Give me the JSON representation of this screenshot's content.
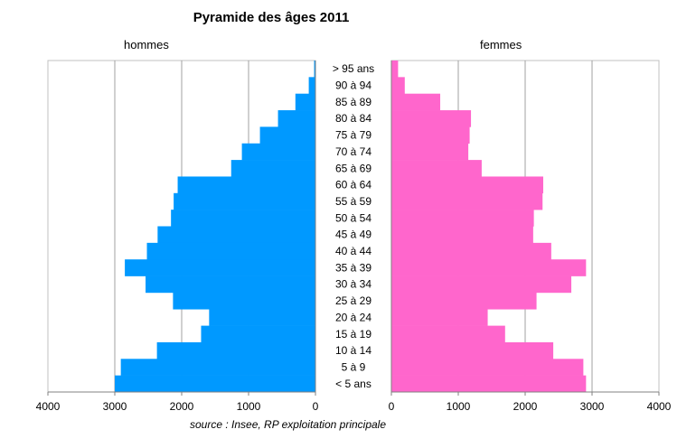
{
  "chart_data": {
    "type": "bar",
    "title": "Pyramide des âges 2011",
    "source": "source : Insee, RP exploitation principale",
    "categories": [
      "> 95 ans",
      "90 à 94",
      "85 à 89",
      "80 à 84",
      "75 à 79",
      "70 à 74",
      "65 à 69",
      "60 à 64",
      "55 à 59",
      "50 à 54",
      "45 à 49",
      "40 à 44",
      "35 à 39",
      "30 à 34",
      "25 à 29",
      "20 à 24",
      "15 à 19",
      "10 à 14",
      "5 à 9",
      "< 5 ans"
    ],
    "series": [
      {
        "name": "hommes",
        "color": "#0099ff",
        "values": [
          20,
          100,
          300,
          560,
          830,
          1100,
          1260,
          2060,
          2120,
          2160,
          2360,
          2520,
          2850,
          2540,
          2130,
          1590,
          1710,
          2370,
          2910,
          3000
        ]
      },
      {
        "name": "femmes",
        "color": "#ff66cc",
        "values": [
          100,
          200,
          730,
          1190,
          1170,
          1150,
          1350,
          2270,
          2260,
          2130,
          2120,
          2390,
          2910,
          2690,
          2170,
          1440,
          1700,
          2420,
          2870,
          2910
        ]
      }
    ],
    "xlim": [
      0,
      4000
    ],
    "xticks": [
      "4000",
      "3000",
      "2000",
      "1000",
      "0"
    ],
    "xticks_right": [
      "0",
      "1000",
      "2000",
      "3000",
      "4000"
    ],
    "grid": true
  }
}
